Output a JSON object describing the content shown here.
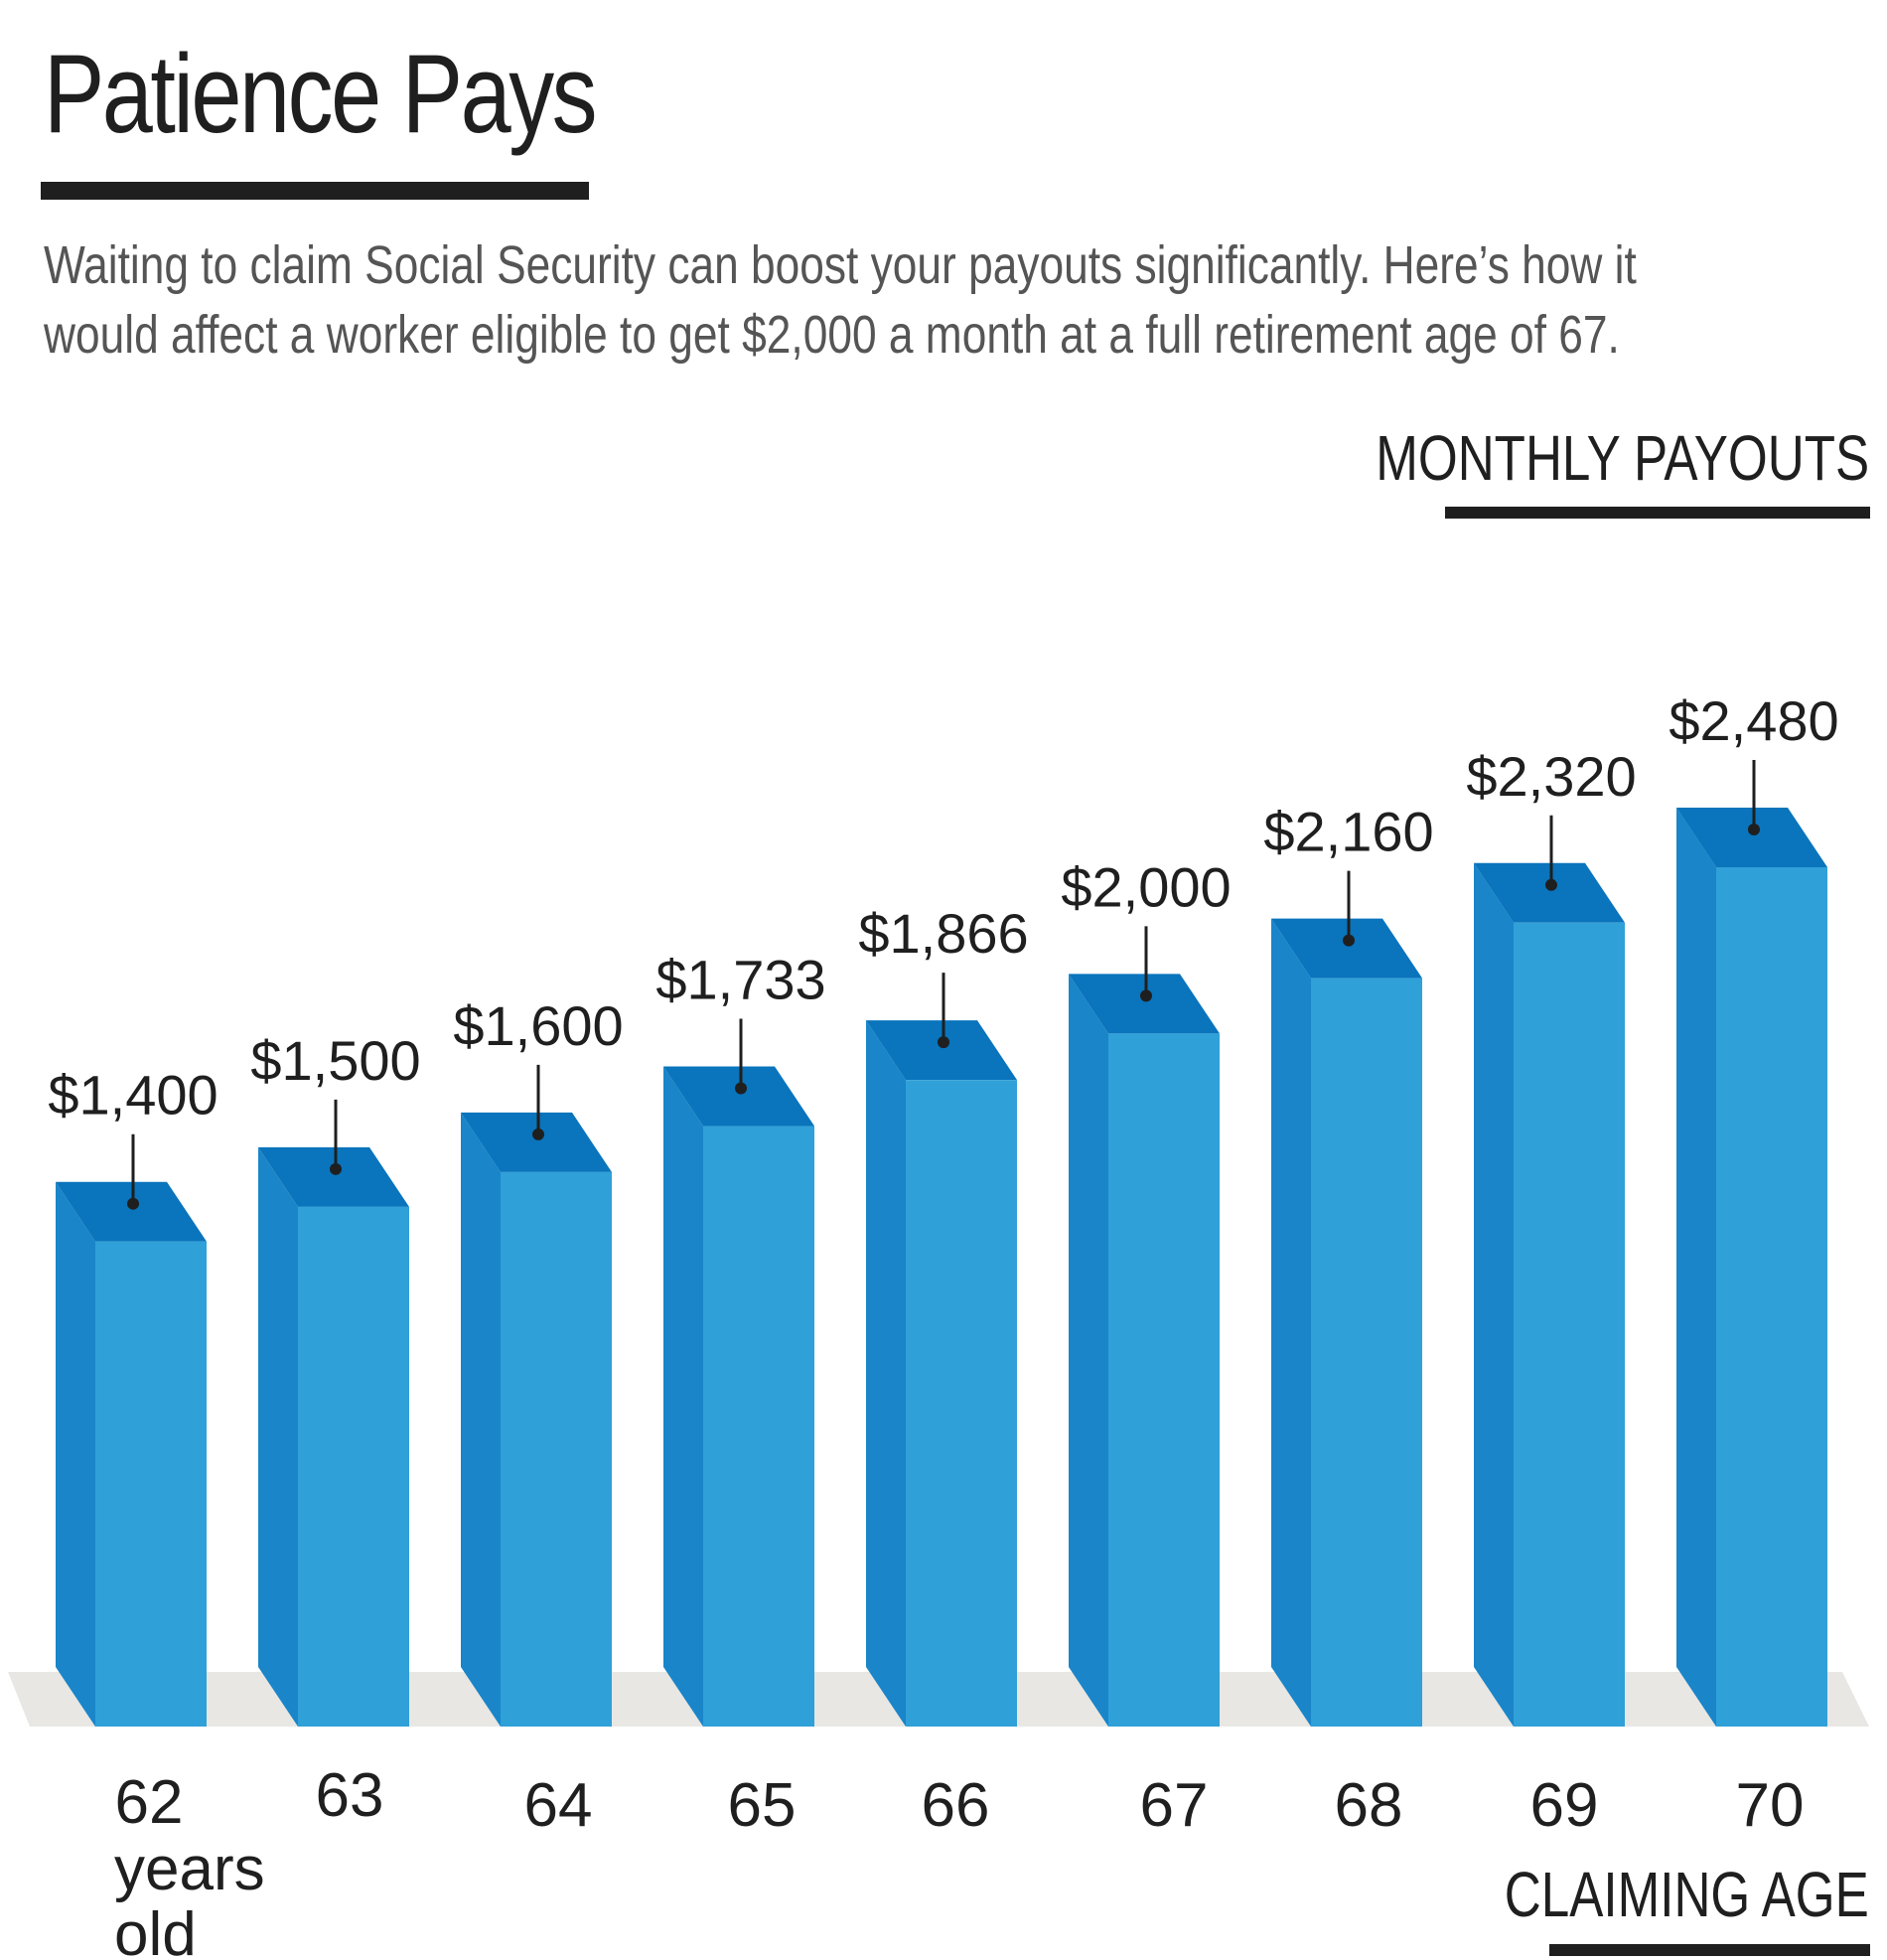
{
  "chart_data": {
    "type": "bar",
    "title": "Patience Pays",
    "subtitle_lines": [
      "Waiting to claim Social Security can boost your payouts significantly. Here’s how it",
      "would affect a worker eligible to get $2,000 a month at a full retirement age of 67."
    ],
    "ylabel": "MONTHLY PAYOUTS",
    "xlabel": "CLAIMING AGE",
    "categories": [
      "62",
      "63",
      "64",
      "65",
      "66",
      "67",
      "68",
      "69",
      "70"
    ],
    "first_category_suffix": [
      "years",
      "old"
    ],
    "values": [
      1400,
      1500,
      1600,
      1733,
      1866,
      2000,
      2160,
      2320,
      2480
    ],
    "value_labels": [
      "$1,400",
      "$1,500",
      "$1,600",
      "$1,733",
      "$1,866",
      "$2,000",
      "$2,160",
      "$2,320",
      "$2,480"
    ],
    "ylim": [
      0,
      2480
    ],
    "grid": false,
    "legend": "none"
  },
  "colors": {
    "bar_front": "#30a0d8",
    "bar_side": "#1a85c8",
    "bar_top": "#0a74bc",
    "floor": "#e8e7e4",
    "text": "#1f1f1f",
    "subtitle_text": "#555555"
  }
}
